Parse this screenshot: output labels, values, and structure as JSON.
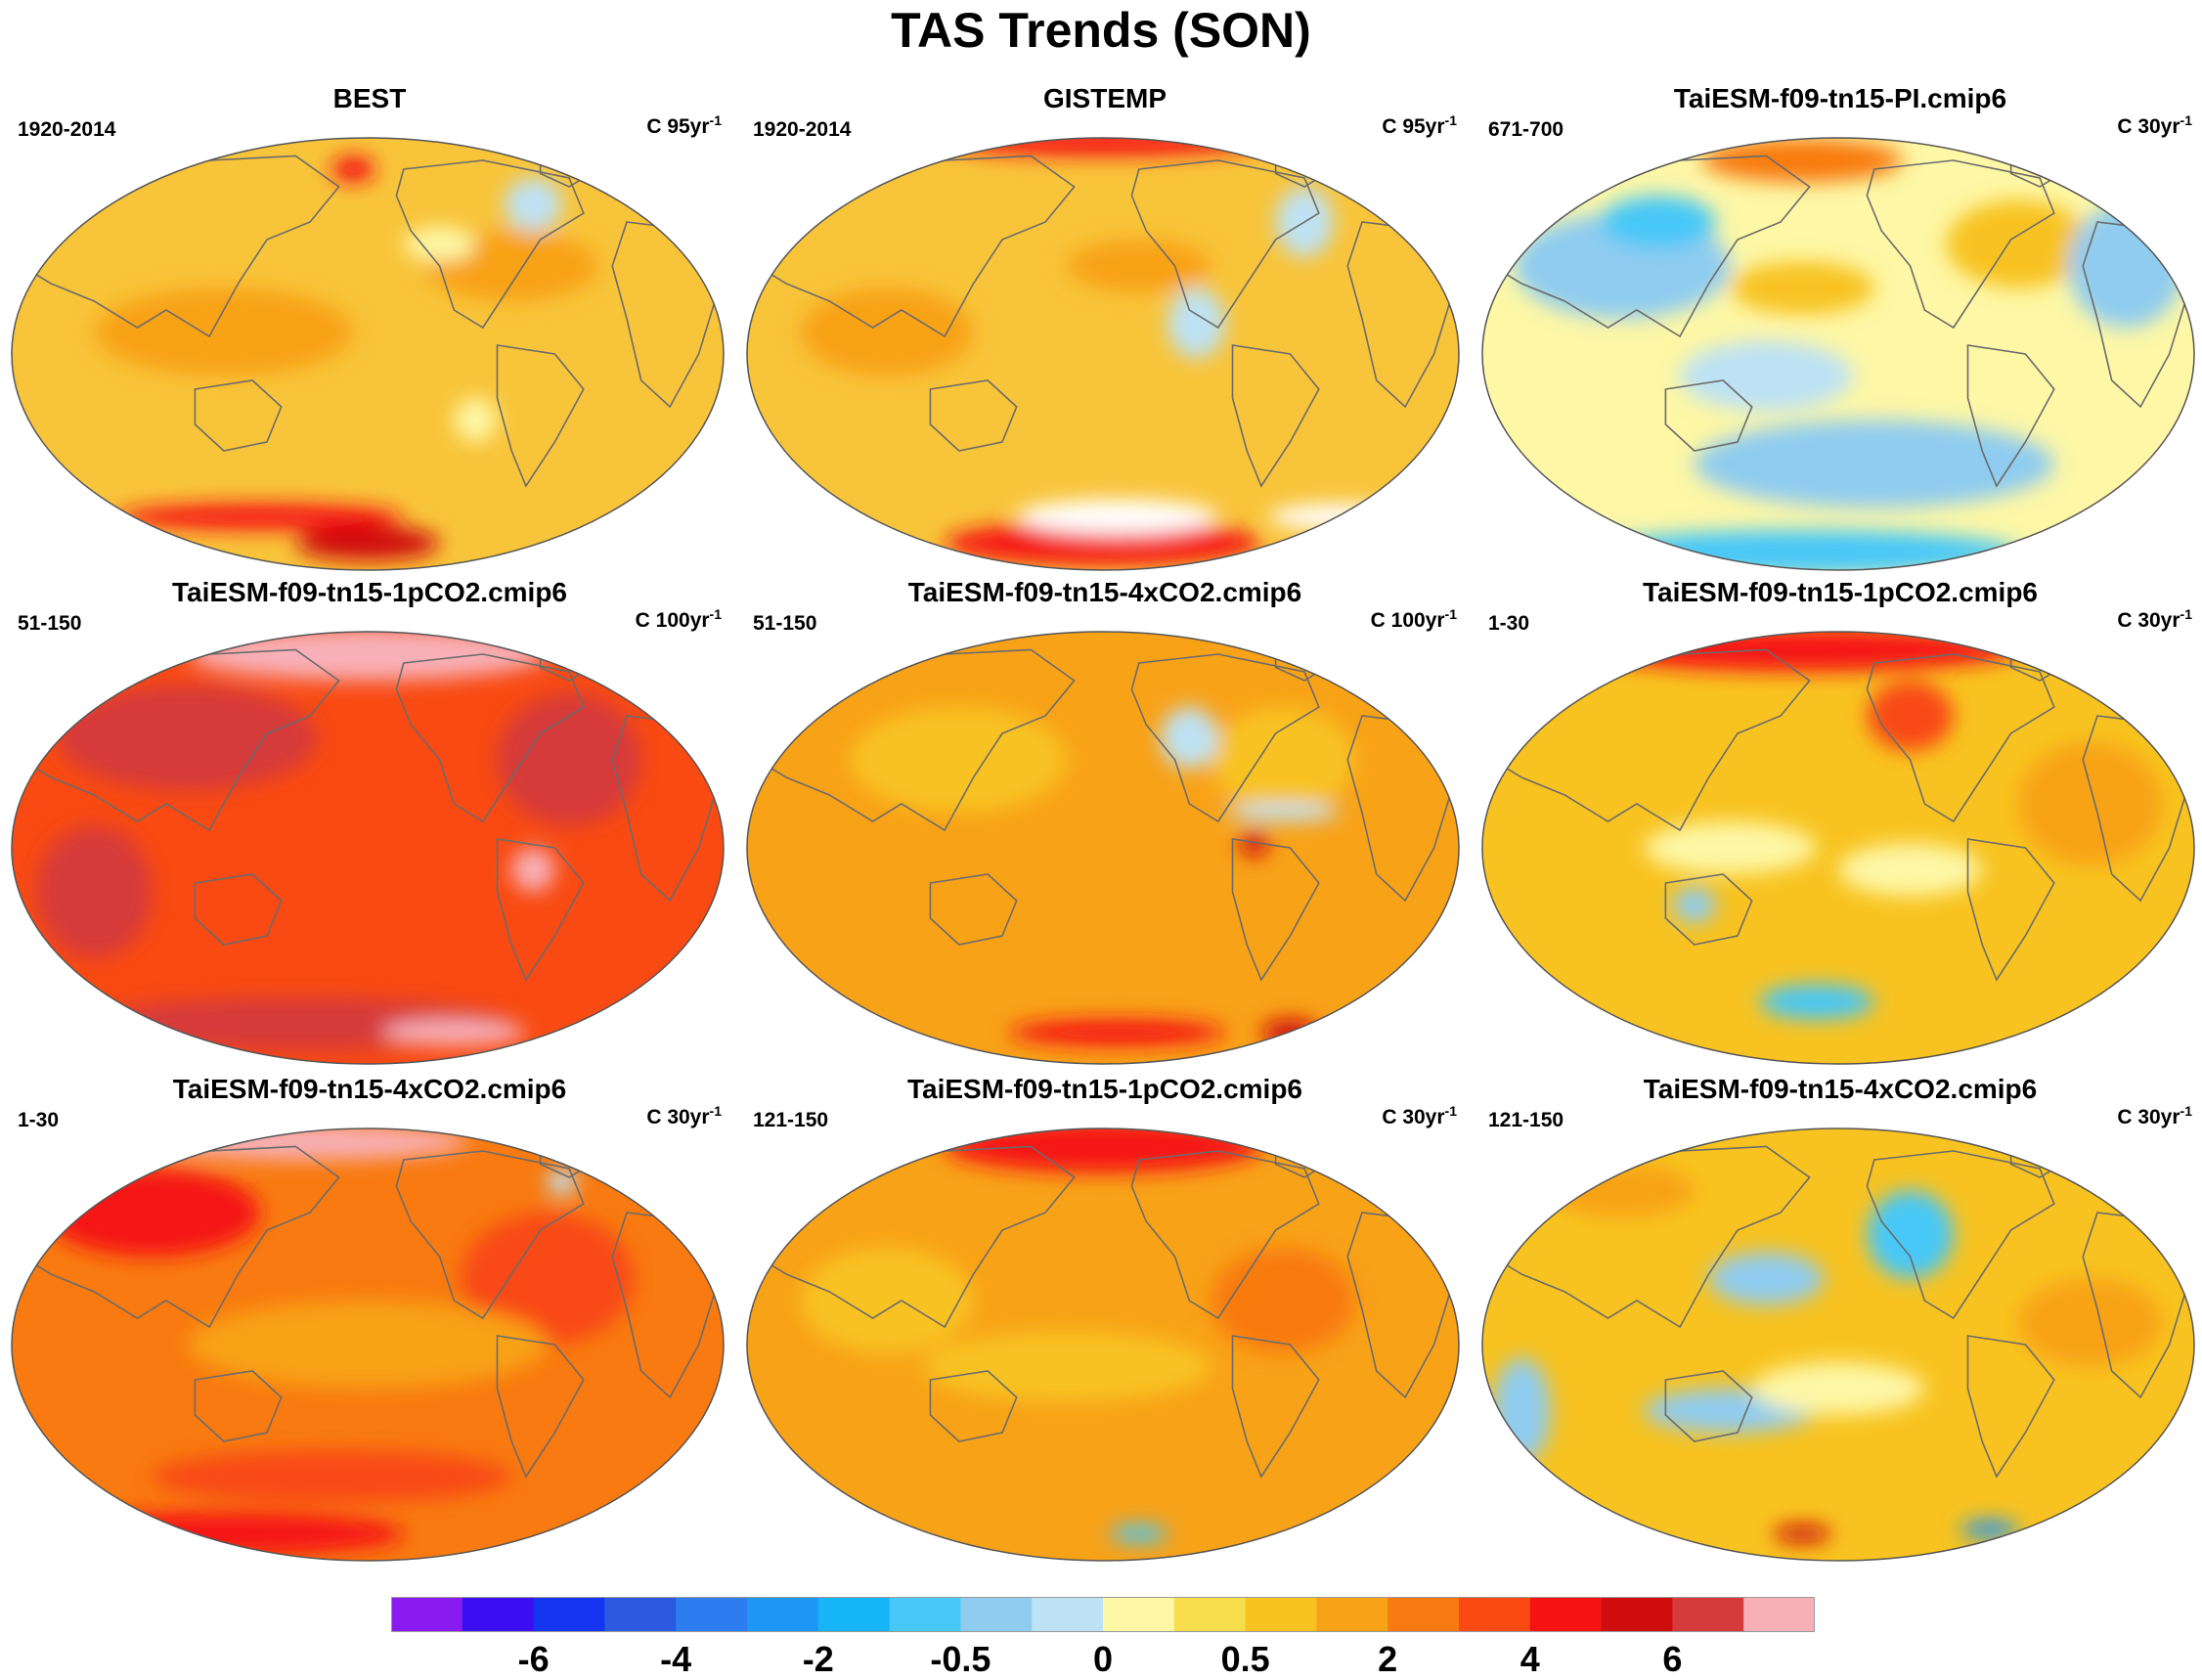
{
  "title": "TAS Trends (SON)",
  "colors": {
    "base_fill": "#f8b93a",
    "coast": "#6b6b6b",
    "levels": [
      "#8a1bf0",
      "#3b0ff2",
      "#1535f0",
      "#2b5ae0",
      "#2d7cf0",
      "#1d96f5",
      "#15b5f8",
      "#46c8f8",
      "#8fccf0",
      "#bde2f4",
      "#fdf7a6",
      "#f8dd4c",
      "#f8c320",
      "#f8a218",
      "#f87a10",
      "#f84a12",
      "#f51212",
      "#cf0d0d",
      "#d63b3b",
      "#f8b0b8"
    ]
  },
  "panels": [
    {
      "name": "BEST",
      "period": "1920-2014",
      "units": "C 95yr",
      "exp": "-1",
      "base": "#f8c43a",
      "blobs": [
        [
          "#f8a218",
          0.3,
          0.45,
          0.18,
          0.1
        ],
        [
          "#f8a218",
          0.7,
          0.3,
          0.12,
          0.08
        ],
        [
          "#fdf7a6",
          0.6,
          0.25,
          0.05,
          0.04
        ],
        [
          "#bde2f4",
          0.73,
          0.16,
          0.04,
          0.06
        ],
        [
          "#f51212",
          0.48,
          0.08,
          0.03,
          0.03
        ],
        [
          "#f51212",
          0.35,
          0.87,
          0.2,
          0.03
        ],
        [
          "#cf0d0d",
          0.5,
          0.93,
          0.1,
          0.04
        ],
        [
          "#fdf7a6",
          0.65,
          0.65,
          0.03,
          0.05
        ]
      ]
    },
    {
      "name": "GISTEMP",
      "period": "1920-2014",
      "units": "C 95yr",
      "exp": "-1",
      "base": "#f8c43a",
      "blobs": [
        [
          "#f51212",
          0.5,
          0.02,
          0.22,
          0.03
        ],
        [
          "#f8a218",
          0.2,
          0.45,
          0.12,
          0.1
        ],
        [
          "#f8a218",
          0.55,
          0.3,
          0.1,
          0.06
        ],
        [
          "#bde2f4",
          0.78,
          0.2,
          0.04,
          0.08
        ],
        [
          "#bde2f4",
          0.63,
          0.43,
          0.04,
          0.08
        ],
        [
          "#f51212",
          0.5,
          0.93,
          0.22,
          0.05
        ],
        [
          "#ffffff",
          0.52,
          0.87,
          0.14,
          0.04
        ],
        [
          "#ffffff",
          0.83,
          0.87,
          0.1,
          0.03
        ]
      ]
    },
    {
      "name": "TaiESM-f09-tn15-PI.cmip6",
      "period": "671-700",
      "units": "C 30yr",
      "exp": "-1",
      "base": "#fdf7a6",
      "blobs": [
        [
          "#8fccf0",
          0.2,
          0.3,
          0.15,
          0.12
        ],
        [
          "#8fccf0",
          0.55,
          0.75,
          0.25,
          0.1
        ],
        [
          "#bde2f4",
          0.4,
          0.55,
          0.12,
          0.08
        ],
        [
          "#46c8f8",
          0.25,
          0.2,
          0.08,
          0.06
        ],
        [
          "#f87a10",
          0.45,
          0.06,
          0.14,
          0.05
        ],
        [
          "#f8c320",
          0.75,
          0.25,
          0.1,
          0.1
        ],
        [
          "#46c8f8",
          0.45,
          0.95,
          0.3,
          0.05
        ],
        [
          "#8fccf0",
          0.9,
          0.3,
          0.08,
          0.14
        ],
        [
          "#f8c320",
          0.45,
          0.35,
          0.1,
          0.06
        ]
      ]
    },
    {
      "name": "TaiESM-f09-tn15-1pCO2.cmip6",
      "period": "51-150",
      "units": "C 100yr",
      "exp": "-1",
      "base": "#f84a12",
      "blobs": [
        [
          "#f8b0b8",
          0.5,
          0.06,
          0.25,
          0.06
        ],
        [
          "#d63b3b",
          0.25,
          0.25,
          0.18,
          0.12
        ],
        [
          "#d63b3b",
          0.78,
          0.3,
          0.1,
          0.15
        ],
        [
          "#d63b3b",
          0.12,
          0.6,
          0.08,
          0.15
        ],
        [
          "#f8b0b8",
          0.73,
          0.55,
          0.03,
          0.05
        ],
        [
          "#d63b3b",
          0.4,
          0.9,
          0.3,
          0.06
        ],
        [
          "#f8b0b8",
          0.62,
          0.92,
          0.1,
          0.03
        ]
      ]
    },
    {
      "name": "TaiESM-f09-tn15-4xCO2.cmip6",
      "period": "51-150",
      "units": "C 100yr",
      "exp": "-1",
      "base": "#f8a218",
      "blobs": [
        [
          "#f8c320",
          0.3,
          0.3,
          0.15,
          0.12
        ],
        [
          "#f8c320",
          0.75,
          0.3,
          0.1,
          0.12
        ],
        [
          "#bde2f4",
          0.62,
          0.25,
          0.04,
          0.07
        ],
        [
          "#bde2f4",
          0.75,
          0.42,
          0.08,
          0.02
        ],
        [
          "#cf0d0d",
          0.71,
          0.49,
          0.02,
          0.03
        ],
        [
          "#f51212",
          0.52,
          0.92,
          0.15,
          0.03
        ],
        [
          "#cf0d0d",
          0.76,
          0.92,
          0.04,
          0.03
        ]
      ]
    },
    {
      "name": "TaiESM-f09-tn15-1pCO2.cmip6",
      "period": "1-30",
      "units": "C 30yr",
      "exp": "-1",
      "base": "#f8c320",
      "blobs": [
        [
          "#f51212",
          0.45,
          0.05,
          0.3,
          0.05
        ],
        [
          "#f84a12",
          0.6,
          0.2,
          0.06,
          0.08
        ],
        [
          "#fdf7a6",
          0.35,
          0.5,
          0.12,
          0.06
        ],
        [
          "#fdf7a6",
          0.6,
          0.55,
          0.1,
          0.06
        ],
        [
          "#46c8f8",
          0.47,
          0.85,
          0.08,
          0.04
        ],
        [
          "#f8a218",
          0.85,
          0.4,
          0.1,
          0.14
        ],
        [
          "#8fccf0",
          0.3,
          0.63,
          0.03,
          0.04
        ]
      ]
    },
    {
      "name": "TaiESM-f09-tn15-4xCO2.cmip6",
      "period": "1-30",
      "units": "C 30yr",
      "exp": "-1",
      "base": "#f87a10",
      "blobs": [
        [
          "#f8b0b8",
          0.42,
          0.04,
          0.22,
          0.04
        ],
        [
          "#f51212",
          0.2,
          0.2,
          0.15,
          0.1
        ],
        [
          "#f84a12",
          0.75,
          0.35,
          0.12,
          0.15
        ],
        [
          "#bde2f4",
          0.77,
          0.13,
          0.02,
          0.03
        ],
        [
          "#f84a12",
          0.45,
          0.8,
          0.25,
          0.06
        ],
        [
          "#f51212",
          0.3,
          0.93,
          0.25,
          0.05
        ],
        [
          "#f8a218",
          0.5,
          0.5,
          0.25,
          0.1
        ]
      ]
    },
    {
      "name": "TaiESM-f09-tn15-1pCO2.cmip6",
      "period": "121-150",
      "units": "C 30yr",
      "exp": "-1",
      "base": "#f8a218",
      "blobs": [
        [
          "#f51212",
          0.5,
          0.05,
          0.22,
          0.06
        ],
        [
          "#f8c320",
          0.2,
          0.4,
          0.12,
          0.12
        ],
        [
          "#f8c320",
          0.45,
          0.55,
          0.2,
          0.08
        ],
        [
          "#f87a10",
          0.75,
          0.4,
          0.1,
          0.12
        ],
        [
          "#46c8f8",
          0.55,
          0.93,
          0.04,
          0.02
        ]
      ]
    },
    {
      "name": "TaiESM-f09-tn15-4xCO2.cmip6",
      "period": "121-150",
      "units": "C 30yr",
      "exp": "-1",
      "base": "#f8c320",
      "blobs": [
        [
          "#46c8f8",
          0.6,
          0.25,
          0.06,
          0.1
        ],
        [
          "#8fccf0",
          0.4,
          0.35,
          0.08,
          0.06
        ],
        [
          "#8fccf0",
          0.35,
          0.65,
          0.12,
          0.05
        ],
        [
          "#8fccf0",
          0.06,
          0.65,
          0.04,
          0.12
        ],
        [
          "#f8a218",
          0.2,
          0.15,
          0.1,
          0.06
        ],
        [
          "#f8a218",
          0.85,
          0.45,
          0.1,
          0.1
        ],
        [
          "#fdf7a6",
          0.5,
          0.6,
          0.12,
          0.06
        ],
        [
          "#cf0d0d",
          0.45,
          0.93,
          0.04,
          0.02
        ],
        [
          "#1d96f5",
          0.71,
          0.92,
          0.04,
          0.02
        ]
      ]
    }
  ],
  "colorbar": {
    "labels": [
      "-6",
      "-4",
      "-2",
      "-0.5",
      "0",
      "0.5",
      "2",
      "4",
      "6"
    ]
  }
}
